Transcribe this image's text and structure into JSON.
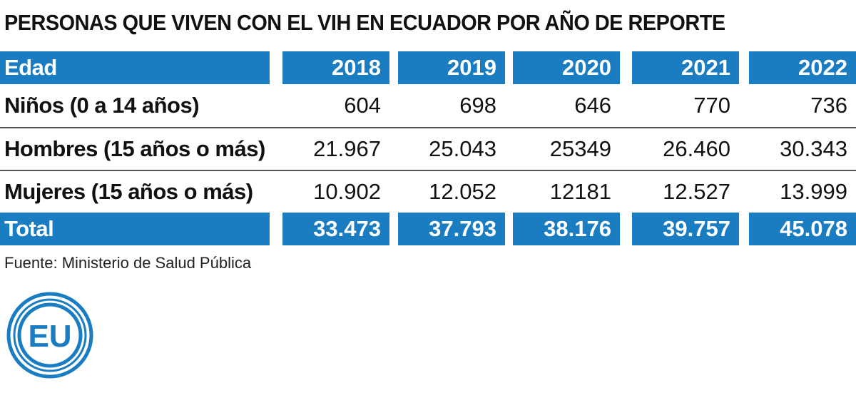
{
  "title": "PERSONAS QUE VIVEN CON EL VIH EN ECUADOR POR AÑO DE REPORTE",
  "source": "Fuente: Ministerio de Salud Pública",
  "logo_text": "EU",
  "colors": {
    "accent": "#1a7cc1",
    "text": "#111111"
  },
  "chart_data": {
    "type": "table",
    "title": "PERSONAS QUE VIVEN CON EL VIH EN ECUADOR POR AÑO DE REPORTE",
    "columns": [
      "Edad",
      "2018",
      "2019",
      "2020",
      "2021",
      "2022"
    ],
    "rows": [
      [
        "Niños (0 a 14 años)",
        "604",
        "698",
        "646",
        "770",
        "736"
      ],
      [
        "Hombres (15 años o más)",
        "21.967",
        "25.043",
        "25349",
        "26.460",
        "30.343"
      ],
      [
        "Mujeres (15 años o más)",
        "10.902",
        "12.052",
        "12181",
        "12.527",
        "13.999"
      ],
      [
        "Total",
        "33.473",
        "37.793",
        "38.176",
        "39.757",
        "45.078"
      ]
    ]
  }
}
